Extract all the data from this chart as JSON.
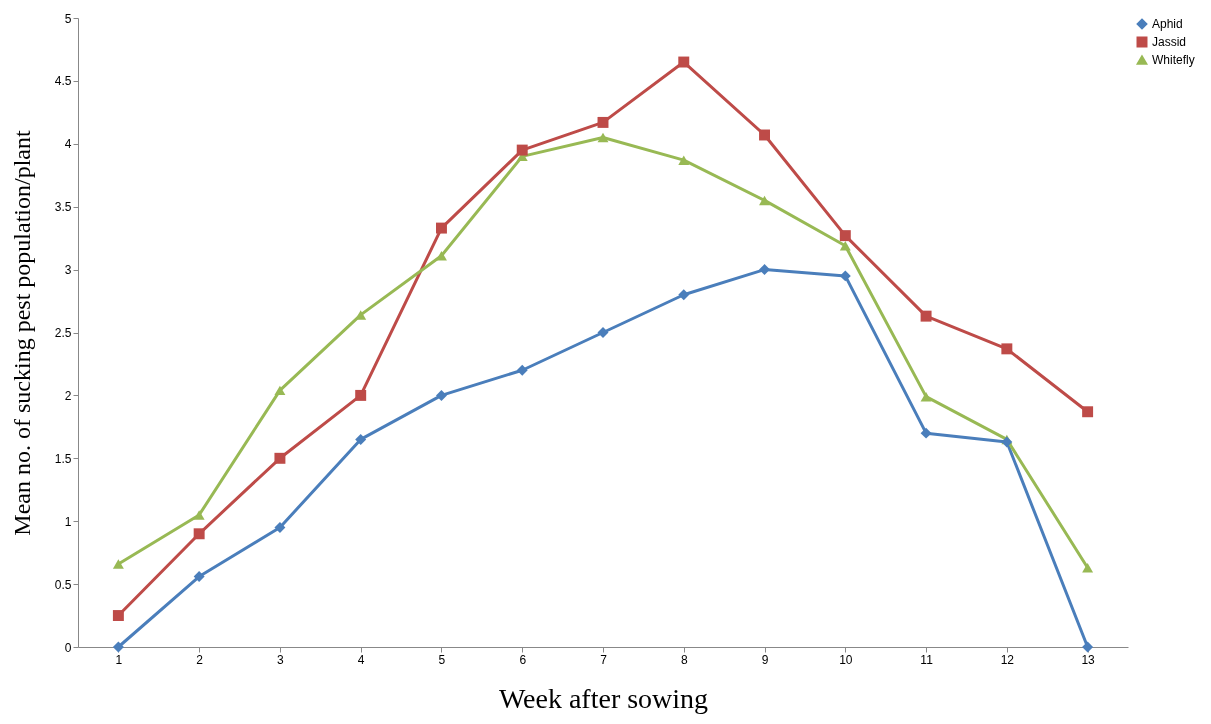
{
  "chart_data": {
    "type": "line",
    "xlabel": "Week after  sowing",
    "ylabel": "Mean no. of sucking pest population/plant",
    "categories": [
      "1",
      "2",
      "3",
      "4",
      "5",
      "6",
      "7",
      "8",
      "9",
      "10",
      "11",
      "12",
      "13"
    ],
    "series": [
      {
        "name": "Aphid",
        "color": "#4a7ebb",
        "marker": "diamond",
        "values": [
          0,
          0.56,
          0.95,
          1.65,
          2.0,
          2.2,
          2.5,
          2.8,
          3.0,
          2.95,
          1.7,
          1.63,
          0
        ]
      },
      {
        "name": "Jassid",
        "color": "#be4b48",
        "marker": "square",
        "values": [
          0.25,
          0.9,
          1.5,
          2.0,
          3.33,
          3.95,
          4.17,
          4.65,
          4.07,
          3.27,
          2.63,
          2.37,
          1.87
        ]
      },
      {
        "name": "Whitefly",
        "color": "#98b954",
        "marker": "triangle",
        "values": [
          0.66,
          1.05,
          2.04,
          2.64,
          3.11,
          3.9,
          4.05,
          3.87,
          3.55,
          3.19,
          1.99,
          1.65,
          0.63
        ]
      }
    ],
    "ylim": [
      0,
      5
    ],
    "yticks": [
      0,
      0.5,
      1,
      1.5,
      2,
      2.5,
      3,
      3.5,
      4,
      4.5,
      5
    ],
    "legend": "right",
    "grid": false
  }
}
